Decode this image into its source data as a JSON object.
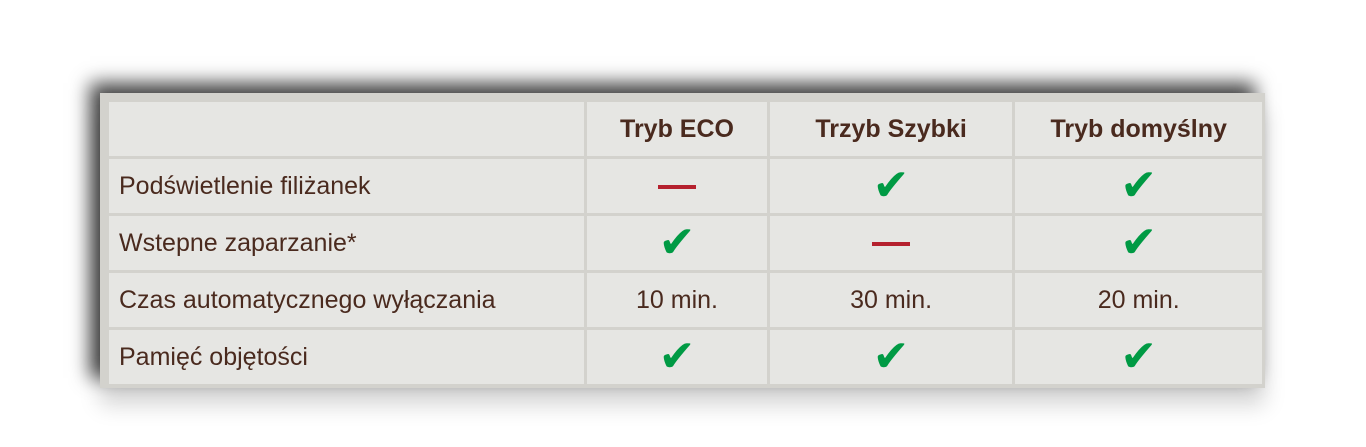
{
  "colors": {
    "text": "#4a2a1e",
    "check": "#009a44",
    "dash": "#b5212e"
  },
  "columns": [
    "",
    "Tryb ECO",
    "Trzyb Szybki",
    "Tryb domyślny"
  ],
  "rows": [
    {
      "label": "Podświetlenie filiżanek",
      "cells": [
        {
          "type": "dash"
        },
        {
          "type": "check"
        },
        {
          "type": "check"
        }
      ]
    },
    {
      "label": "Wstepne zaparzanie*",
      "cells": [
        {
          "type": "check"
        },
        {
          "type": "dash"
        },
        {
          "type": "check"
        }
      ]
    },
    {
      "label": "Czas automatycznego wyłączania",
      "cells": [
        {
          "type": "text",
          "value": "10 min."
        },
        {
          "type": "text",
          "value": "30 min."
        },
        {
          "type": "text",
          "value": "20 min."
        }
      ]
    },
    {
      "label": "Pamięć objętości",
      "cells": [
        {
          "type": "check"
        },
        {
          "type": "check"
        },
        {
          "type": "check"
        }
      ]
    }
  ]
}
